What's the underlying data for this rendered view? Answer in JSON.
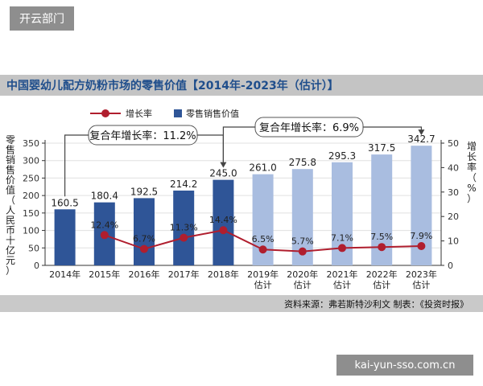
{
  "watermark_top": "开云部门",
  "watermark_bottom": "kai-yun-sso.com.cn",
  "chart_title": "中国婴幼儿配方奶粉市场的零售价值【2014年-2023年（估计）】",
  "source_note": "资料来源：弗若斯特沙利文   制表：《投资时报》",
  "colors": {
    "bar_actual": "#2f5597",
    "bar_estimate": "#a9bde0",
    "line": "#b01e2e",
    "marker": "#b01e2e",
    "grid": "#e0e0e0"
  },
  "chart_data": {
    "type": "bar",
    "title": "中国婴幼儿配方奶粉市场的零售价值【2014年-2023年（估计）】",
    "categories": [
      [
        "2014年"
      ],
      [
        "2015年"
      ],
      [
        "2016年"
      ],
      [
        "2017年"
      ],
      [
        "2018年"
      ],
      [
        "2019年",
        "估计"
      ],
      [
        "2020年",
        "估计"
      ],
      [
        "2021年",
        "估计"
      ],
      [
        "2022年",
        "估计"
      ],
      [
        "2023年",
        "估计"
      ]
    ],
    "series": [
      {
        "name": "零售销售价值",
        "kind": "bar",
        "axis": "left",
        "values": [
          160.5,
          180.4,
          192.5,
          214.2,
          245.0,
          261.0,
          275.8,
          295.3,
          317.5,
          342.7
        ],
        "labels": [
          "160.5",
          "180.4",
          "192.5",
          "214.2",
          "245.0",
          "261.0",
          "275.8",
          "295.3",
          "317.5",
          "342.7"
        ],
        "estimated": [
          false,
          false,
          false,
          false,
          false,
          true,
          true,
          true,
          true,
          true
        ]
      },
      {
        "name": "增长率",
        "kind": "line",
        "axis": "right",
        "values": [
          null,
          12.4,
          6.7,
          11.3,
          14.4,
          6.5,
          5.7,
          7.1,
          7.5,
          7.9
        ],
        "labels": [
          "",
          "12.4%",
          "6.7%",
          "11.3%",
          "14.4%",
          "6.5%",
          "5.7%",
          "7.1%",
          "7.5%",
          "7.9%"
        ]
      }
    ],
    "ylabel_left": "零售销售价值（人民币十亿元）",
    "ylabel_right": "增长率（%）",
    "ylim_left": [
      0,
      350
    ],
    "yticks_left": [
      0,
      50,
      100,
      150,
      200,
      250,
      300,
      350
    ],
    "ylim_right": [
      0,
      50
    ],
    "yticks_right": [
      0,
      10,
      20,
      30,
      40,
      50
    ],
    "grid": true,
    "legend_placement": "top-left",
    "annotations": [
      {
        "text": "复合年增长率：11.2%",
        "span_categories": [
          0,
          4
        ]
      },
      {
        "text": "复合年增长率：6.9%",
        "span_categories": [
          4,
          9
        ]
      }
    ]
  }
}
